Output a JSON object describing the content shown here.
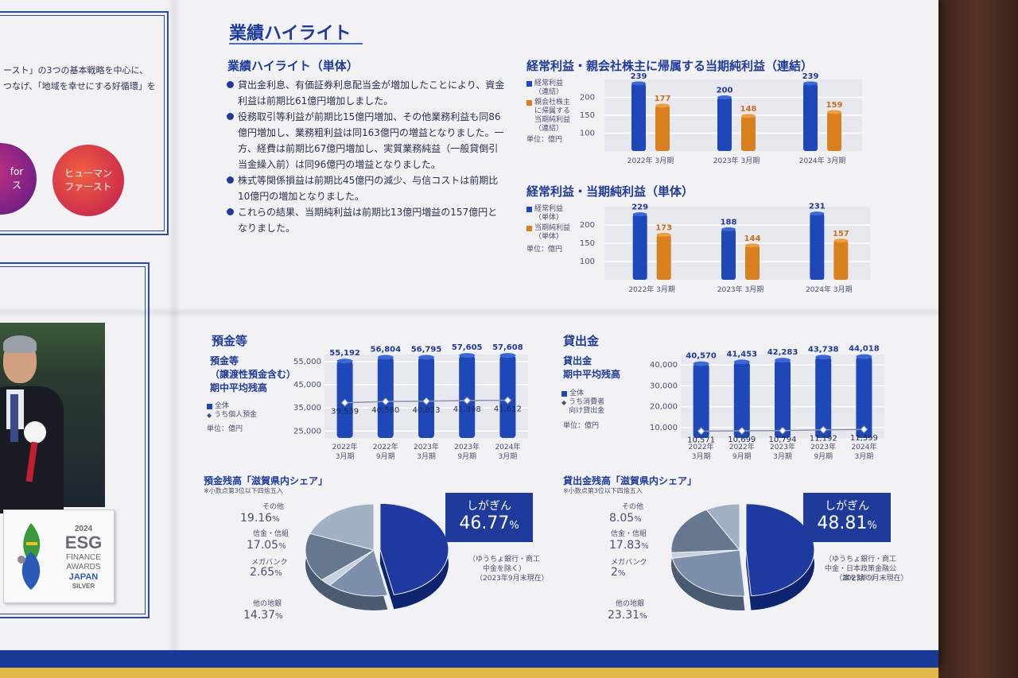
{
  "left_panel": {
    "text_line1": "ースト」の3つの基本戦略を中心に、",
    "text_line2": "つなげ、「地域を幸せにする好循環」を",
    "circle1": "for\nス",
    "circle2": "ヒューマン\nファースト",
    "esg": {
      "year": "2024",
      "l1": "ESG",
      "l2": "FINANCE",
      "l3": "AWARDS",
      "l4": "JAPAN",
      "l5": "SILVER"
    }
  },
  "highlights": {
    "title": "業績ハイライト",
    "subtitle": "業績ハイライト（単体）",
    "bullets": [
      "貸出金利息、有価証券利息配当金が増加したことにより、資金利益は前期比61億円増加しました。",
      "役務取引等利益が前期比15億円増加、その他業務利益も同86億円増加し、業務粗利益は同163億円の増益となりました。一方、経費は前期比67億円増加し、実質業務純益（一般貸倒引当金繰入前）は同96億円の増益となりました。",
      "株式等関係損益は前期比45億円の減少、与信コストは前期比10億円の増加となりました。",
      "これらの結果、当期純利益は前期比13億円増益の157億円となりました。"
    ]
  },
  "chart_data": [
    {
      "type": "bar",
      "title": "経常利益・親会社株主に帰属する当期純利益（連結）",
      "categories": [
        "2022年 3月期",
        "2023年 3月期",
        "2024年 3月期"
      ],
      "series": [
        {
          "name": "経常利益（連結）",
          "values": [
            239,
            200,
            239
          ],
          "color": "#1e48b8"
        },
        {
          "name": "親会社株主に帰属する当期純利益（連結）",
          "values": [
            177,
            148,
            159
          ],
          "color": "#d8801e"
        }
      ],
      "yticks": [
        100,
        150,
        200
      ],
      "ylim": [
        50,
        250
      ],
      "unit": "単位：億円"
    },
    {
      "type": "bar",
      "title": "経常利益・当期純利益（単体）",
      "categories": [
        "2022年 3月期",
        "2023年 3月期",
        "2024年 3月期"
      ],
      "series": [
        {
          "name": "経常利益（単体）",
          "values": [
            229,
            188,
            231
          ],
          "color": "#1e48b8"
        },
        {
          "name": "当期純利益（単体）",
          "values": [
            173,
            144,
            157
          ],
          "color": "#d8801e"
        }
      ],
      "yticks": [
        100,
        150,
        200
      ],
      "ylim": [
        50,
        250
      ],
      "unit": "単位：億円"
    },
    {
      "type": "bar",
      "title": "預金等",
      "label": "預金等（譲渡性預金含む）期中平均残高",
      "categories": [
        "2022年3月期",
        "2022年9月期",
        "2023年3月期",
        "2023年9月期",
        "2024年3月期"
      ],
      "series": [
        {
          "name": "全体",
          "values": [
            55192,
            56804,
            56795,
            57605,
            57608
          ],
          "color": "#1e48b8"
        },
        {
          "name": "うち個人預金",
          "values": [
            39539,
            40580,
            40823,
            41398,
            41612
          ],
          "color": "#8a94a8"
        }
      ],
      "yticks": [
        25000,
        35000,
        45000,
        55000
      ],
      "ylim": [
        22000,
        58000
      ],
      "line_plot_ylim": [
        10000,
        80000
      ],
      "unit": "単位：億円"
    },
    {
      "type": "bar",
      "title": "貸出金",
      "label": "貸出金 期中平均残高",
      "categories": [
        "2022年3月期",
        "2022年9月期",
        "2023年3月期",
        "2023年9月期",
        "2024年3月期"
      ],
      "series": [
        {
          "name": "全体",
          "values": [
            40570,
            41453,
            42283,
            43738,
            44018
          ],
          "color": "#1e48b8"
        },
        {
          "name": "うち消費者向け貸出金",
          "values": [
            10571,
            10699,
            10794,
            11192,
            11399
          ],
          "color": "#8a94a8"
        }
      ],
      "yticks": [
        10000,
        20000,
        30000,
        40000
      ],
      "ylim": [
        5000,
        45000
      ],
      "unit": "単位：億円"
    },
    {
      "type": "pie",
      "title": "預金残高「滋賀県内シェア」",
      "note": "※小数点第3位以下四捨五入",
      "slices": [
        {
          "label": "しがぎん",
          "value": 46.77,
          "color": "#1e3aa0"
        },
        {
          "label": "他の地銀",
          "value": 14.37,
          "color": "#7c90ac"
        },
        {
          "label": "メガバンク",
          "value": 2.65,
          "color": "#c8d0dc"
        },
        {
          "label": "信金・信組",
          "value": 17.05,
          "color": "#66788f"
        },
        {
          "label": "その他",
          "value": 19.16,
          "color": "#a2b0c3"
        }
      ],
      "highlight_note": "（ゆうちょ銀行・商工中金を除く）",
      "date_note": "（2023年9月末現在）"
    },
    {
      "type": "pie",
      "title": "貸出金残高「滋賀県内シェア」",
      "note": "※小数点第3位以下四捨五入",
      "slices": [
        {
          "label": "しがぎん",
          "value": 48.81,
          "color": "#1e3aa0"
        },
        {
          "label": "他の地銀",
          "value": 23.31,
          "color": "#7c90ac"
        },
        {
          "label": "メガバンク",
          "value": 2.0,
          "color": "#c8d0dc"
        },
        {
          "label": "信金・信組",
          "value": 17.83,
          "color": "#66788f"
        },
        {
          "label": "その他",
          "value": 8.05,
          "color": "#a2b0c3"
        }
      ],
      "highlight_note": "（ゆうちょ銀行・商工中金・日本政策金融公庫を除く）",
      "date_note": "（2023年9月末現在）"
    }
  ],
  "labels": {
    "pie_pct_suffix": "%",
    "legend1a": "経常利益\n（連結）",
    "legend1b": "親会社株主\nに帰属する\n当期純利益\n（連結）",
    "legend2a": "経常利益\n（単体）",
    "legend2b": "当期純利益\n（単体）",
    "dep_legend_a": "全体",
    "dep_legend_b": "うち個人預金",
    "loan_legend_a": "全体",
    "loan_legend_b": "うち消費者\n向け貸出金",
    "dep_label": "預金等\n（譲渡性預金含む）\n期中平均残高",
    "loan_label": "貸出金\n期中平均残高"
  }
}
